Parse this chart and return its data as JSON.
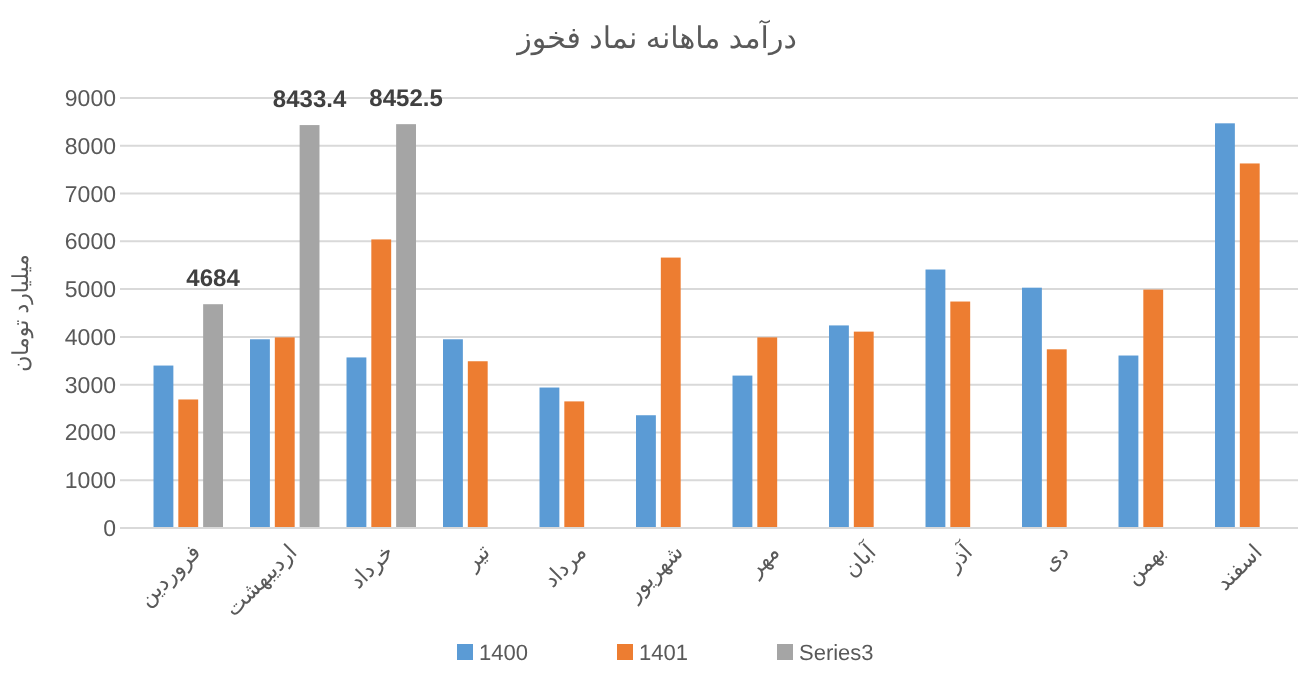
{
  "chart_data": {
    "type": "bar",
    "title": "درآمد ماهانه نماد فخوز",
    "ylabel": "میلیارد تومان",
    "categories": [
      "فروردین",
      "اردیبهشت",
      "خرداد",
      "تیر",
      "مرداد",
      "شهریور",
      "مهر",
      "آبان",
      "آذر",
      "دی",
      "بهمن",
      "اسفند"
    ],
    "series": [
      {
        "name": "1400",
        "color": "#5b9bd5",
        "values": [
          3400,
          3950,
          3570,
          3950,
          2940,
          2360,
          3190,
          4240,
          5410,
          5030,
          3610,
          8470
        ]
      },
      {
        "name": "1401",
        "color": "#ed7d31",
        "values": [
          2690,
          3990,
          6040,
          3490,
          2650,
          5660,
          3990,
          4110,
          4740,
          3740,
          4990,
          7630
        ]
      },
      {
        "name": "Series3",
        "color": "#a5a5a5",
        "values": [
          4684,
          8433.4,
          8452.5,
          null,
          null,
          null,
          null,
          null,
          null,
          null,
          null,
          null
        ],
        "value_labels": [
          "4684",
          "8433.4",
          "8452.5",
          null,
          null,
          null,
          null,
          null,
          null,
          null,
          null,
          null
        ]
      }
    ],
    "ylim": [
      0,
      9000
    ],
    "yticks": [
      0,
      1000,
      2000,
      3000,
      4000,
      5000,
      6000,
      7000,
      8000,
      9000
    ],
    "grid": "y",
    "legend": "bottom"
  }
}
